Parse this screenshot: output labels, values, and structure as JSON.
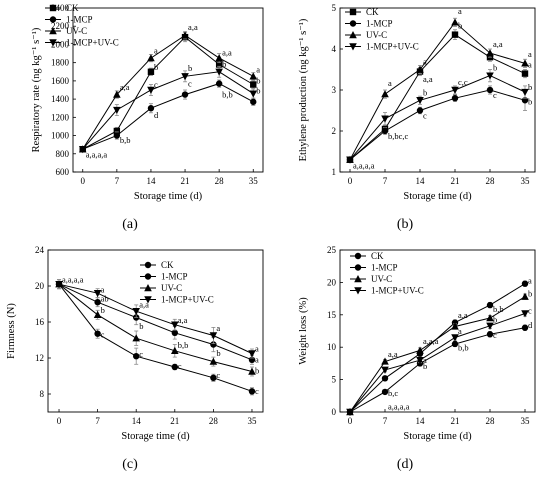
{
  "chart_data": [
    {
      "panel_label": "(a)",
      "type": "line",
      "xlabel": "Storage time (d)",
      "ylabel": "Respiratory rate (ng kg⁻¹ s⁻¹)",
      "x": [
        0,
        7,
        14,
        21,
        28,
        35
      ],
      "xlim": [
        -2,
        37
      ],
      "ylim": [
        600,
        2400
      ],
      "yticks": [
        600,
        800,
        1000,
        1200,
        1400,
        1600,
        1800,
        2000,
        2200,
        2400
      ],
      "legend_position": "top-left",
      "series": [
        {
          "name": "CK",
          "marker": "square",
          "values": [
            850,
            1050,
            1700,
            2080,
            1780,
            1560
          ],
          "error": [
            0,
            40,
            40,
            50,
            50,
            40
          ]
        },
        {
          "name": "1-MCP",
          "marker": "circle",
          "values": [
            850,
            1000,
            1300,
            1450,
            1570,
            1370
          ],
          "error": [
            0,
            40,
            50,
            50,
            40,
            40
          ]
        },
        {
          "name": "UV-C",
          "marker": "triangle-up",
          "values": [
            850,
            1450,
            1850,
            2100,
            1850,
            1650
          ],
          "error": [
            0,
            40,
            40,
            40,
            50,
            40
          ]
        },
        {
          "name": "1-MCP+UV-C",
          "marker": "triangle-down",
          "values": [
            850,
            1280,
            1500,
            1650,
            1700,
            1460
          ],
          "error": [
            0,
            60,
            60,
            60,
            60,
            50
          ]
        }
      ],
      "annotations": [
        {
          "x": 0,
          "y": 760,
          "text": "a,a,a,a"
        },
        {
          "x": 7,
          "y": 1500,
          "text": "a,a"
        },
        {
          "x": 7,
          "y": 920,
          "text": "b,b"
        },
        {
          "x": 14,
          "y": 1900,
          "text": "a"
        },
        {
          "x": 14,
          "y": 1720,
          "text": "b"
        },
        {
          "x": 14,
          "y": 1530,
          "text": "c"
        },
        {
          "x": 14,
          "y": 1190,
          "text": "d"
        },
        {
          "x": 21,
          "y": 2160,
          "text": "a,a"
        },
        {
          "x": 21,
          "y": 1710,
          "text": "b"
        },
        {
          "x": 21,
          "y": 1540,
          "text": "c"
        },
        {
          "x": 28,
          "y": 1880,
          "text": "a,a"
        },
        {
          "x": 28,
          "y": 1750,
          "text": "b"
        },
        {
          "x": 28,
          "y": 1420,
          "text": "b,b"
        },
        {
          "x": 35,
          "y": 1690,
          "text": "a"
        },
        {
          "x": 35,
          "y": 1570,
          "text": "b"
        },
        {
          "x": 35,
          "y": 1460,
          "text": "b"
        }
      ]
    },
    {
      "panel_label": "(b)",
      "type": "line",
      "xlabel": "Storage time (d)",
      "ylabel": "Ethylene production (ng kg⁻¹ s⁻¹)",
      "x": [
        0,
        7,
        14,
        21,
        28,
        35
      ],
      "xlim": [
        -2,
        37
      ],
      "ylim": [
        1,
        5
      ],
      "yticks": [
        1,
        2,
        3,
        4,
        5
      ],
      "legend_position": "top-left",
      "series": [
        {
          "name": "CK",
          "marker": "square",
          "values": [
            1.3,
            2.05,
            3.45,
            4.35,
            3.8,
            3.4
          ],
          "error": [
            0,
            0.08,
            0.1,
            0.12,
            0.1,
            0.1
          ]
        },
        {
          "name": "1-MCP",
          "marker": "circle",
          "values": [
            1.3,
            2.0,
            2.5,
            2.8,
            3.0,
            2.75
          ],
          "error": [
            0,
            0.08,
            0.08,
            0.08,
            0.1,
            0.25
          ]
        },
        {
          "name": "UV-C",
          "marker": "triangle-up",
          "values": [
            1.3,
            2.9,
            3.5,
            4.65,
            3.9,
            3.65
          ],
          "error": [
            0,
            0.1,
            0.1,
            0.1,
            0.1,
            0.1
          ]
        },
        {
          "name": "1-MCP+UV-C",
          "marker": "triangle-down",
          "values": [
            1.3,
            2.3,
            2.75,
            3.0,
            3.35,
            2.95
          ],
          "error": [
            0,
            0.15,
            0.1,
            0.1,
            0.15,
            0.15
          ]
        }
      ],
      "annotations": [
        {
          "x": 0,
          "y": 1.08,
          "text": "a,a,a,a"
        },
        {
          "x": 7,
          "y": 3.1,
          "text": "a"
        },
        {
          "x": 7,
          "y": 1.8,
          "text": "b,bc,c"
        },
        {
          "x": 14,
          "y": 3.62,
          "text": "a"
        },
        {
          "x": 14,
          "y": 3.2,
          "text": "a,a"
        },
        {
          "x": 14,
          "y": 2.86,
          "text": "b"
        },
        {
          "x": 14,
          "y": 2.3,
          "text": "c"
        },
        {
          "x": 21,
          "y": 4.85,
          "text": "a"
        },
        {
          "x": 21,
          "y": 4.5,
          "text": "b"
        },
        {
          "x": 21,
          "y": 3.12,
          "text": "c,c"
        },
        {
          "x": 28,
          "y": 4.05,
          "text": "a,a"
        },
        {
          "x": 28,
          "y": 3.48,
          "text": "b"
        },
        {
          "x": 28,
          "y": 2.8,
          "text": "c"
        },
        {
          "x": 35,
          "y": 3.8,
          "text": "a"
        },
        {
          "x": 35,
          "y": 3.55,
          "text": "a"
        },
        {
          "x": 35,
          "y": 3.0,
          "text": "b"
        },
        {
          "x": 35,
          "y": 2.65,
          "text": "b"
        }
      ]
    },
    {
      "panel_label": "(c)",
      "type": "line",
      "xlabel": "Storage time (d)",
      "ylabel": "Firmness (N)",
      "x": [
        0,
        7,
        14,
        21,
        28,
        35
      ],
      "xlim": [
        -2,
        37
      ],
      "ylim": [
        6,
        24
      ],
      "yticks": [
        8,
        12,
        16,
        20,
        24
      ],
      "legend_position": "top-right",
      "series": [
        {
          "name": "CK",
          "marker": "circle",
          "values": [
            20.2,
            14.7,
            12.2,
            11.0,
            9.8,
            8.3
          ],
          "error": [
            0.5,
            0.5,
            0.9,
            0.3,
            0.4,
            0.4
          ]
        },
        {
          "name": "1-MCP",
          "marker": "circle",
          "values": [
            20.2,
            18.2,
            16.5,
            14.8,
            13.5,
            11.8
          ],
          "error": [
            0.5,
            0.5,
            0.8,
            0.7,
            0.8,
            0.5
          ]
        },
        {
          "name": "UV-C",
          "marker": "triangle-up",
          "values": [
            20.2,
            16.8,
            14.2,
            12.8,
            11.6,
            10.5
          ],
          "error": [
            0.5,
            0.5,
            0.8,
            0.7,
            0.5,
            0.5
          ]
        },
        {
          "name": "1-MCP+UV-C",
          "marker": "triangle-down",
          "values": [
            20.2,
            19.2,
            17.2,
            15.7,
            14.5,
            12.5
          ],
          "error": [
            0.5,
            0.5,
            0.7,
            0.6,
            0.9,
            0.5
          ]
        }
      ],
      "annotations": [
        {
          "x": 0,
          "y": 20.4,
          "text": "a,a,a,a"
        },
        {
          "x": 7,
          "y": 19.3,
          "text": "a"
        },
        {
          "x": 7,
          "y": 18.3,
          "text": "ab"
        },
        {
          "x": 7,
          "y": 17.0,
          "text": "b"
        },
        {
          "x": 7,
          "y": 14.3,
          "text": "c"
        },
        {
          "x": 14,
          "y": 17.6,
          "text": "a,a"
        },
        {
          "x": 14,
          "y": 15.2,
          "text": "b"
        },
        {
          "x": 14,
          "y": 12.1,
          "text": "c"
        },
        {
          "x": 21,
          "y": 15.9,
          "text": "a,a"
        },
        {
          "x": 21,
          "y": 13.1,
          "text": "b,b"
        },
        {
          "x": 21,
          "y": 10.8,
          "text": "c"
        },
        {
          "x": 28,
          "y": 15.0,
          "text": "a"
        },
        {
          "x": 28,
          "y": 12.2,
          "text": "b"
        },
        {
          "x": 28,
          "y": 9.8,
          "text": "c"
        },
        {
          "x": 35,
          "y": 12.7,
          "text": "a"
        },
        {
          "x": 35,
          "y": 11.5,
          "text": "a"
        },
        {
          "x": 35,
          "y": 10.3,
          "text": "b"
        },
        {
          "x": 35,
          "y": 8.0,
          "text": "c"
        }
      ]
    },
    {
      "panel_label": "(d)",
      "type": "line",
      "xlabel": "Storage time (d)",
      "ylabel": "Weight loss (%)",
      "x": [
        0,
        7,
        14,
        21,
        28,
        35
      ],
      "xlim": [
        -2,
        37
      ],
      "ylim": [
        0,
        25
      ],
      "yticks": [
        0,
        5,
        10,
        15,
        20,
        25
      ],
      "legend_position": "top-left",
      "series": [
        {
          "name": "CK",
          "marker": "circle",
          "values": [
            0,
            5.2,
            9.0,
            13.8,
            16.5,
            19.8
          ],
          "error": [
            0,
            0.3,
            0.4,
            0.4,
            0.4,
            0.4
          ]
        },
        {
          "name": "1-MCP",
          "marker": "circle",
          "values": [
            0,
            3.1,
            7.5,
            10.5,
            12.0,
            13.0
          ],
          "error": [
            0,
            0.3,
            0.4,
            0.4,
            0.4,
            0.4
          ]
        },
        {
          "name": "UV-C",
          "marker": "triangle-up",
          "values": [
            0,
            7.8,
            9.5,
            13.2,
            14.5,
            17.8
          ],
          "error": [
            0,
            0.3,
            0.4,
            0.4,
            0.4,
            0.4
          ]
        },
        {
          "name": "1-MCP+UV-C",
          "marker": "triangle-down",
          "values": [
            0,
            6.5,
            8.0,
            11.5,
            13.3,
            15.2
          ],
          "error": [
            0,
            0.3,
            0.4,
            0.4,
            0.4,
            0.4
          ]
        }
      ],
      "annotations": [
        {
          "x": 7,
          "y": 0.4,
          "text": "a,a,a,a"
        },
        {
          "x": 7,
          "y": 8.5,
          "text": "a,a"
        },
        {
          "x": 7,
          "y": 2.5,
          "text": "b,c"
        },
        {
          "x": 14,
          "y": 10.5,
          "text": "a,a,a"
        },
        {
          "x": 14,
          "y": 7.6,
          "text": "a"
        },
        {
          "x": 14,
          "y": 6.6,
          "text": "b"
        },
        {
          "x": 21,
          "y": 14.5,
          "text": "a,a"
        },
        {
          "x": 21,
          "y": 12.0,
          "text": "a"
        },
        {
          "x": 21,
          "y": 9.5,
          "text": "b,b"
        },
        {
          "x": 28,
          "y": 15.4,
          "text": "b,b"
        },
        {
          "x": 28,
          "y": 13.8,
          "text": "b"
        },
        {
          "x": 28,
          "y": 11.4,
          "text": "c"
        },
        {
          "x": 35,
          "y": 19.8,
          "text": "a"
        },
        {
          "x": 35,
          "y": 17.8,
          "text": "b"
        },
        {
          "x": 35,
          "y": 15.2,
          "text": "c"
        },
        {
          "x": 35,
          "y": 13.0,
          "text": "d"
        }
      ]
    }
  ]
}
